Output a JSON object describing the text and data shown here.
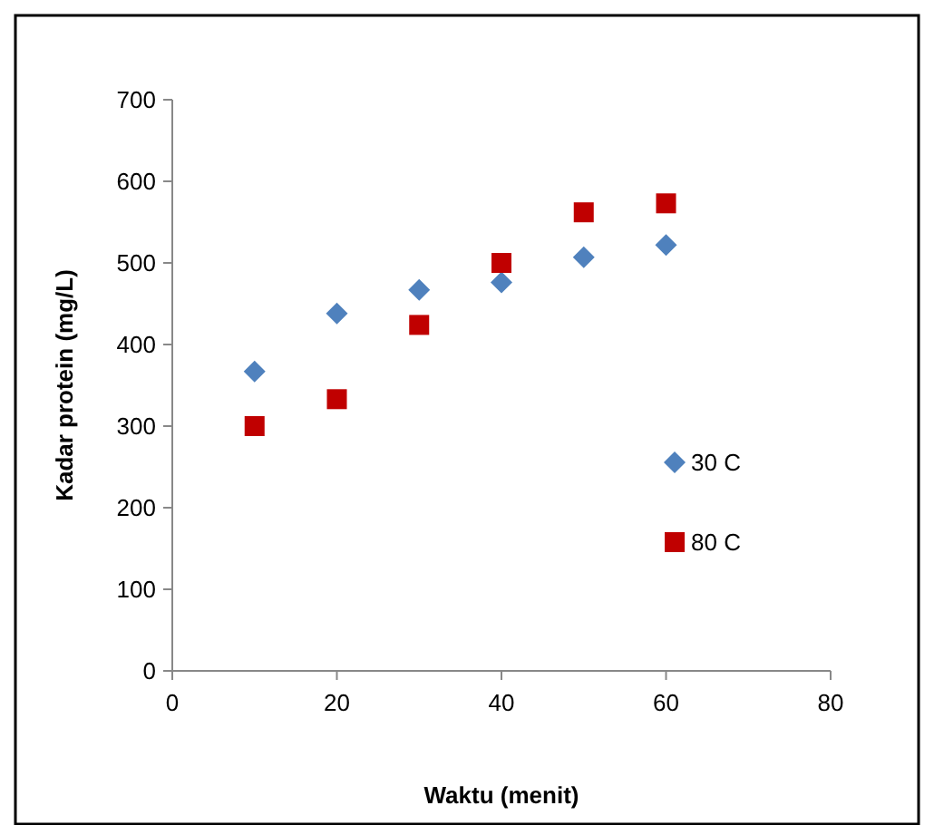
{
  "chart_data": {
    "type": "scatter",
    "xlabel": "Waktu (menit)",
    "ylabel": "Kadar protein (mg/L)",
    "x": [
      10,
      20,
      30,
      40,
      50,
      60
    ],
    "series": [
      {
        "name": "30 C",
        "color": "#4f81bd",
        "marker": "diamond",
        "values": [
          367,
          438,
          467,
          476,
          507,
          522
        ]
      },
      {
        "name": "80 C",
        "color": "#c00000",
        "marker": "square",
        "values": [
          300,
          333,
          424,
          500,
          562,
          573
        ]
      }
    ],
    "xlim": [
      0,
      80
    ],
    "xticks": [
      0,
      20,
      40,
      60,
      80
    ],
    "ylim": [
      0,
      700
    ],
    "yticks": [
      0,
      100,
      200,
      300,
      400,
      500,
      600,
      700
    ],
    "grid": false,
    "legend": "right"
  }
}
